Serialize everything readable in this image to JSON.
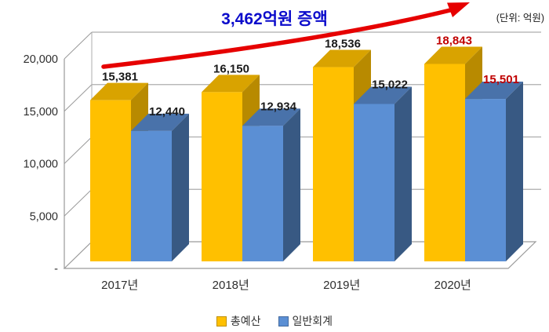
{
  "unit_label": "(단위: 억원)",
  "chart_data": {
    "type": "bar",
    "style": "3d-clustered-column",
    "title": "3,462억원 증액",
    "categories": [
      "2017년",
      "2018년",
      "2019년",
      "2020년"
    ],
    "series": [
      {
        "name": "총예산",
        "color": "#FFC000",
        "values": [
          15381,
          16150,
          18536,
          18843
        ]
      },
      {
        "name": "일반회계",
        "color": "#5B8FD4",
        "values": [
          12440,
          12934,
          15022,
          15501
        ]
      }
    ],
    "value_label_color": "#1a1a1a",
    "highlight": {
      "category_index": 3,
      "color": "#C00000"
    },
    "y_ticks": {
      "values": [
        0,
        5000,
        10000,
        15000,
        20000
      ],
      "labels": [
        "-",
        "5,000",
        "10,000",
        "15,000",
        "20,000"
      ]
    },
    "ylim": [
      0,
      20000
    ],
    "grid": true,
    "grid_color": "#ADADAD",
    "wall_color": "#9A9A9A",
    "axis_text_color": "#2e2e2e",
    "annotation": {
      "text": "3,462억원 증액",
      "color": "#0B0BCB",
      "arrow_color": "#E60000"
    },
    "legend": {
      "position": "bottom"
    }
  }
}
